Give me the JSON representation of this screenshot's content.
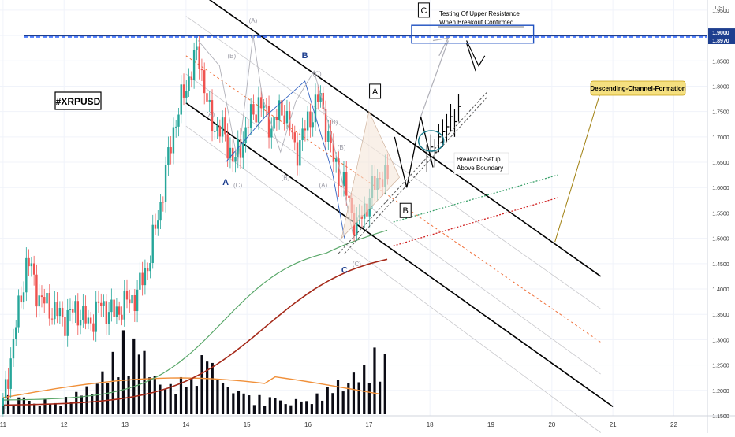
{
  "chart_data": {
    "type": "candlestick",
    "symbol_label": "#XRPUSD",
    "currency": "USD",
    "ylim": [
      1.15,
      1.97
    ],
    "y_ticks": [
      1.95,
      1.9,
      1.85,
      1.8,
      1.75,
      1.7,
      1.65,
      1.6,
      1.55,
      1.5,
      1.45,
      1.4,
      1.35,
      1.3,
      1.25,
      1.2,
      1.15
    ],
    "y_tick_labels": [
      "1.9500",
      "1.9000",
      "1.8500",
      "1.8000",
      "1.7500",
      "1.7000",
      "1.6500",
      "1.6000",
      "1.5500",
      "1.5000",
      "1.4500",
      "1.4000",
      "1.3500",
      "1.3000",
      "1.2500",
      "1.2000",
      "1.1500"
    ],
    "xlim": [
      10.95,
      22.55
    ],
    "x_ticks": [
      11,
      12,
      13,
      14,
      15,
      16,
      17,
      18,
      19,
      20,
      21,
      22
    ],
    "x_tick_labels": [
      "11",
      "12",
      "13",
      "14",
      "15",
      "16",
      "17",
      "18",
      "19",
      "20",
      "21",
      "22"
    ],
    "price_badges": [
      {
        "value": 1.9,
        "label": "1.9000",
        "color": "#1e3f8f"
      },
      {
        "value": 1.897,
        "label": "1.8970",
        "color": "#1e3f8f"
      }
    ],
    "horizontal_levels": [
      {
        "value": 1.9,
        "style": "solid",
        "color": "#1e3f8f"
      },
      {
        "value": 1.897,
        "style": "dashed",
        "color": "#2962ff"
      }
    ],
    "channel": {
      "upper": [
        [
          14.1,
          1.995
        ],
        [
          20.8,
          1.425
        ]
      ],
      "lower": [
        [
          14.0,
          1.767
        ],
        [
          21.0,
          1.168
        ]
      ],
      "mid_dashed": [
        [
          14.0,
          1.86
        ],
        [
          20.8,
          1.295
        ]
      ]
    },
    "price_series": [
      [
        11.0,
        1.17
      ],
      [
        11.2,
        1.32
      ],
      [
        11.4,
        1.46
      ],
      [
        11.6,
        1.38
      ],
      [
        11.8,
        1.36
      ],
      [
        12.0,
        1.34
      ],
      [
        12.2,
        1.36
      ],
      [
        12.4,
        1.33
      ],
      [
        12.6,
        1.37
      ],
      [
        12.8,
        1.35
      ],
      [
        13.0,
        1.37
      ],
      [
        13.2,
        1.39
      ],
      [
        13.4,
        1.46
      ],
      [
        13.6,
        1.58
      ],
      [
        13.8,
        1.72
      ],
      [
        14.0,
        1.8
      ],
      [
        14.2,
        1.87
      ],
      [
        14.4,
        1.73
      ],
      [
        14.6,
        1.71
      ],
      [
        14.8,
        1.65
      ],
      [
        15.0,
        1.72
      ],
      [
        15.2,
        1.77
      ],
      [
        15.4,
        1.72
      ],
      [
        15.6,
        1.76
      ],
      [
        15.8,
        1.67
      ],
      [
        16.0,
        1.73
      ],
      [
        16.2,
        1.78
      ],
      [
        16.4,
        1.66
      ],
      [
        16.6,
        1.6
      ],
      [
        16.8,
        1.52
      ],
      [
        17.0,
        1.58
      ],
      [
        17.2,
        1.63
      ],
      [
        17.4,
        1.59
      ],
      [
        17.6,
        1.64
      ],
      [
        17.8,
        1.7
      ]
    ],
    "projection_candles": [
      1.66,
      1.68,
      1.67,
      1.7,
      1.71,
      1.72,
      1.74,
      1.73,
      1.76
    ],
    "volume_scale_max": 1.0,
    "volume_pattern": [
      0.18,
      0.22,
      0.15,
      0.2,
      0.25,
      0.17,
      0.14,
      0.12,
      0.19,
      0.16,
      0.13,
      0.15,
      0.2,
      0.23,
      0.26,
      0.3,
      0.34,
      0.28,
      0.4,
      0.55,
      0.45,
      0.6,
      0.5,
      0.78,
      0.62,
      0.7,
      0.85,
      0.6,
      0.45,
      0.38,
      0.32,
      0.28,
      0.3,
      0.25,
      0.35,
      0.4,
      0.33,
      0.45,
      0.55,
      0.7,
      0.62,
      0.5,
      0.4,
      0.35,
      0.3,
      0.28,
      0.34,
      0.22
    ],
    "wave_labels": [
      {
        "text": "A",
        "x": 14.65,
        "y": 1.605,
        "color": "#1e3f8f",
        "bold": true
      },
      {
        "text": "B",
        "x": 15.95,
        "y": 1.855,
        "color": "#1e3f8f",
        "bold": true
      },
      {
        "text": "C",
        "x": 16.6,
        "y": 1.432,
        "color": "#1e3f8f",
        "bold": true
      },
      {
        "text": "(A)",
        "x": 15.1,
        "y": 1.925,
        "color": "#9a9aa5"
      },
      {
        "text": "(B)",
        "x": 14.75,
        "y": 1.855,
        "color": "#9a9aa5"
      },
      {
        "text": "(C)",
        "x": 14.85,
        "y": 1.6,
        "color": "#9a9aa5"
      },
      {
        "text": "(A)",
        "x": 14.4,
        "y": 1.74,
        "color": "#9a9aa5"
      },
      {
        "text": "(B)",
        "x": 15.63,
        "y": 1.615,
        "color": "#9a9aa5"
      },
      {
        "text": "(C)",
        "x": 16.15,
        "y": 1.82,
        "color": "#9a9aa5"
      },
      {
        "text": "(B)",
        "x": 16.42,
        "y": 1.725,
        "color": "#9a9aa5"
      },
      {
        "text": "(A)",
        "x": 16.25,
        "y": 1.6,
        "color": "#9a9aa5"
      },
      {
        "text": "(B)",
        "x": 16.55,
        "y": 1.675,
        "color": "#9a9aa5"
      },
      {
        "text": "(C)",
        "x": 16.8,
        "y": 1.445,
        "color": "#9a9aa5"
      }
    ],
    "boxed_labels": [
      {
        "text": "A",
        "x": 17.1,
        "y": 1.79
      },
      {
        "text": "B",
        "x": 17.6,
        "y": 1.555
      },
      {
        "text": "C",
        "x": 17.9,
        "y": 1.95
      }
    ],
    "annotations": {
      "upper_resistance": "Testing Of Upper Resistance\nWhen Breakout Confirmed",
      "breakout": "Breakout-Setup\nAbove Boundary",
      "channel_label": "Descending-Channel-Formation"
    }
  }
}
